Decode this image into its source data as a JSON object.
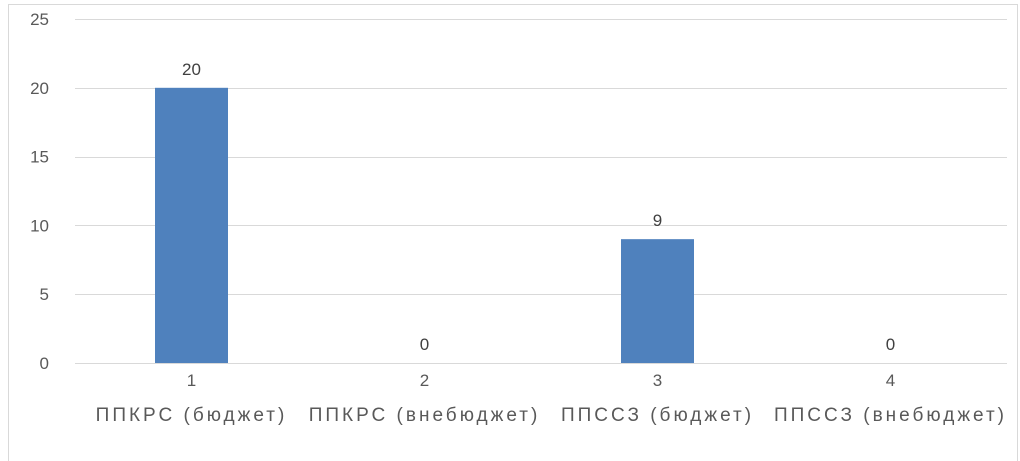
{
  "chart_data": {
    "type": "bar",
    "title": "",
    "xlabel": "",
    "ylabel": "",
    "categories": [
      "1",
      "2",
      "3",
      "4"
    ],
    "category_names": [
      "ППКРС (бюджет)",
      "ППКРС (внебюджет)",
      "ППССЗ (бюджет)",
      "ППССЗ (внебюджет)"
    ],
    "values": [
      20,
      0,
      9,
      0
    ],
    "ylim": [
      0,
      25
    ],
    "yticks": [
      0,
      5,
      10,
      15,
      20,
      25
    ],
    "grid": true,
    "data_labels": true,
    "bar_color": "#4f81bd"
  }
}
